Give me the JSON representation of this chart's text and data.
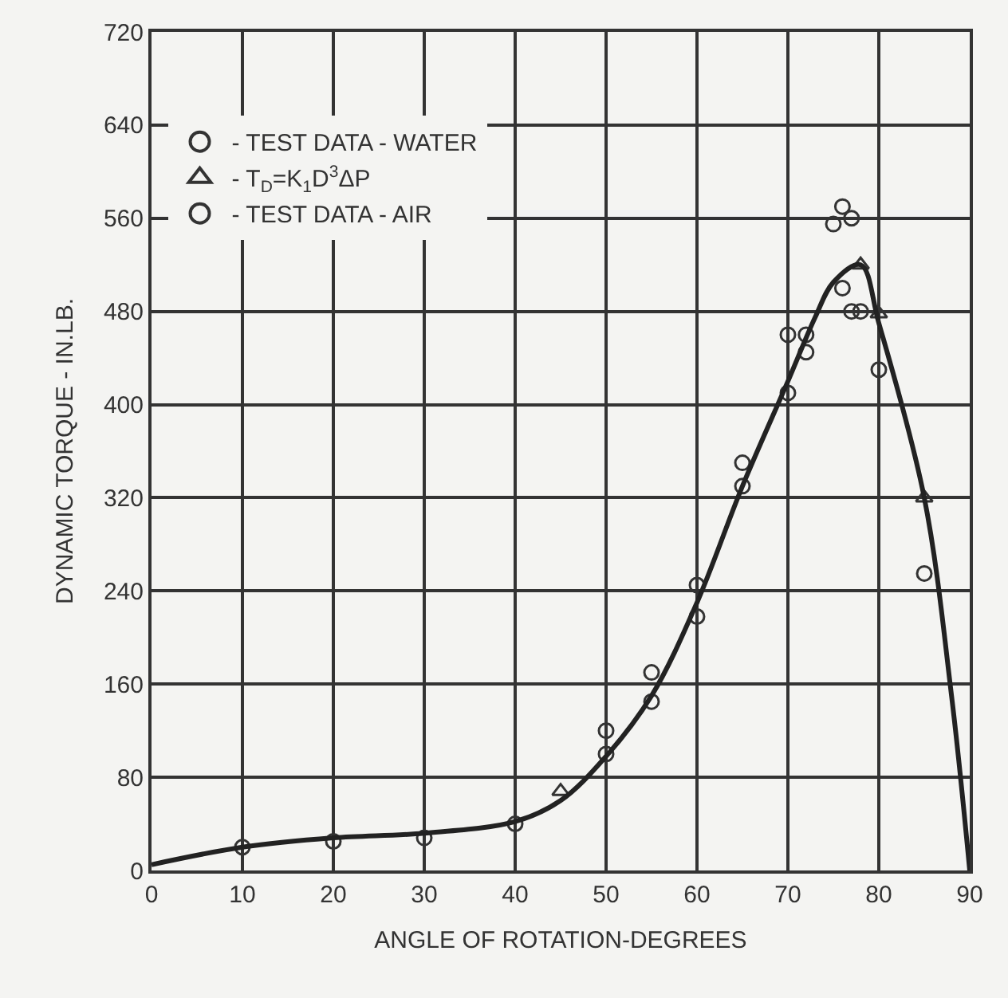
{
  "chart_data": {
    "type": "scatter",
    "xlabel": "ANGLE OF ROTATION-DEGREES",
    "ylabel": "DYNAMIC TORQUE - IN.LB.",
    "xlim": [
      0,
      90
    ],
    "xticks": [
      0,
      10,
      20,
      30,
      40,
      50,
      60,
      70,
      80,
      90
    ],
    "ylim": [
      0,
      720
    ],
    "yticks": [
      0,
      80,
      160,
      240,
      320,
      400,
      480,
      560,
      640,
      720
    ],
    "grid": true,
    "legend": "top left",
    "marker": "circle",
    "series": [
      {
        "name": "- TEST DATA - WATER",
        "color": "#333333",
        "x": [
          10,
          20,
          30,
          40,
          50,
          55,
          60,
          65,
          70,
          72,
          76,
          77,
          80
        ],
        "values": [
          20,
          25,
          28,
          40,
          100,
          145,
          218,
          330,
          410,
          445,
          500,
          480,
          430
        ]
      },
      {
        "name": "- T$_{D}$=K$_{1}$D$^{3}$ΔP",
        "marker": "triangle",
        "color": "#333333",
        "x": [
          45,
          78,
          80,
          85
        ],
        "values": [
          68,
          520,
          478,
          320
        ]
      },
      {
        "name": "- TEST DATA - AIR",
        "color": "#333333",
        "x": [
          50,
          55,
          60,
          65,
          70,
          72,
          75,
          76,
          77,
          78,
          85
        ],
        "values": [
          120,
          170,
          245,
          350,
          460,
          460,
          555,
          570,
          560,
          480,
          255
        ]
      },
      {
        "type": "line",
        "marker": "none",
        "color": "#222222",
        "x": [
          0,
          10,
          20,
          30,
          40,
          45,
          50,
          55,
          60,
          65,
          70,
          73,
          75,
          78,
          80,
          85,
          88,
          90
        ],
        "values": [
          5,
          20,
          28,
          32,
          42,
          60,
          98,
          150,
          230,
          330,
          420,
          475,
          505,
          520,
          470,
          320,
          150,
          0
        ]
      }
    ]
  }
}
